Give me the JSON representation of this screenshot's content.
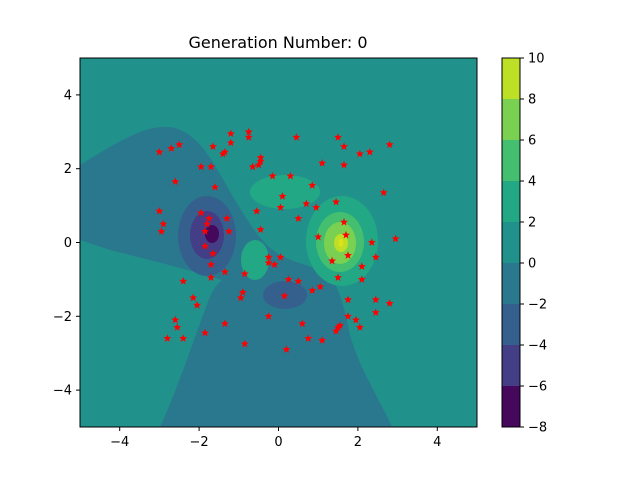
{
  "chart_data": {
    "type": "contour-scatter",
    "title": "Generation Number: 0",
    "xlim": [
      -5,
      5
    ],
    "ylim": [
      -5,
      5
    ],
    "x_ticks": [
      -4,
      -2,
      0,
      2,
      4
    ],
    "y_ticks": [
      -4,
      -2,
      0,
      2,
      4
    ],
    "x_tick_labels": [
      "−4",
      "−2",
      "0",
      "2",
      "4"
    ],
    "y_tick_labels": [
      "−4",
      "−2",
      "0",
      "2",
      "4"
    ],
    "colorbar": {
      "levels": [
        -8,
        -6,
        -4,
        -2,
        0,
        2,
        4,
        6,
        8,
        10
      ],
      "tick_labels": [
        "−8",
        "−6",
        "−4",
        "−2",
        "0",
        "2",
        "4",
        "6",
        "8",
        "10"
      ],
      "colors": [
        "#46085c",
        "#433e85",
        "#35608d",
        "#2a788e",
        "#21918c",
        "#22a884",
        "#44bf70",
        "#7ad151",
        "#bddf26",
        "#dde318"
      ]
    },
    "points": {
      "marker": "star",
      "color": "#ff0000",
      "data": [
        [
          -3.0,
          2.45
        ],
        [
          -2.7,
          2.55
        ],
        [
          -2.5,
          2.65
        ],
        [
          -1.65,
          2.6
        ],
        [
          -1.35,
          2.45
        ],
        [
          -1.2,
          2.95
        ],
        [
          -1.2,
          2.7
        ],
        [
          -0.75,
          3.0
        ],
        [
          -0.75,
          2.85
        ],
        [
          0.45,
          2.85
        ],
        [
          1.5,
          2.85
        ],
        [
          1.65,
          2.6
        ],
        [
          2.05,
          2.4
        ],
        [
          2.3,
          2.45
        ],
        [
          2.8,
          2.65
        ],
        [
          -1.95,
          2.05
        ],
        [
          -1.7,
          2.05
        ],
        [
          -1.4,
          2.4
        ],
        [
          -0.45,
          2.3
        ],
        [
          -0.45,
          2.2
        ],
        [
          -0.65,
          2.05
        ],
        [
          -0.15,
          1.8
        ],
        [
          0.3,
          1.8
        ],
        [
          1.1,
          2.15
        ],
        [
          1.65,
          2.1
        ],
        [
          -2.6,
          1.65
        ],
        [
          -1.6,
          1.5
        ],
        [
          -0.5,
          2.1
        ],
        [
          0.85,
          1.55
        ],
        [
          2.65,
          1.35
        ],
        [
          -3.0,
          0.85
        ],
        [
          -2.9,
          0.5
        ],
        [
          -2.95,
          0.3
        ],
        [
          -1.95,
          0.8
        ],
        [
          -1.75,
          0.65
        ],
        [
          -1.8,
          0.5
        ],
        [
          -1.85,
          0.3
        ],
        [
          -1.85,
          -0.1
        ],
        [
          -1.65,
          -0.3
        ],
        [
          -1.7,
          -0.6
        ],
        [
          -1.7,
          -0.95
        ],
        [
          -1.3,
          0.65
        ],
        [
          -1.25,
          0.3
        ],
        [
          -0.55,
          0.85
        ],
        [
          -0.45,
          0.35
        ],
        [
          0.05,
          0.95
        ],
        [
          0.1,
          1.25
        ],
        [
          0.5,
          0.65
        ],
        [
          0.7,
          1.05
        ],
        [
          0.95,
          0.95
        ],
        [
          1.0,
          0.15
        ],
        [
          1.45,
          1.1
        ],
        [
          1.65,
          0.55
        ],
        [
          1.7,
          0.2
        ],
        [
          1.75,
          -0.35
        ],
        [
          2.35,
          0.0
        ],
        [
          2.45,
          -0.4
        ],
        [
          2.95,
          0.1
        ],
        [
          1.35,
          -0.5
        ],
        [
          2.1,
          -0.65
        ],
        [
          -1.35,
          -0.8
        ],
        [
          -0.85,
          -0.85
        ],
        [
          -0.25,
          -0.4
        ],
        [
          -0.25,
          -0.55
        ],
        [
          -0.1,
          -0.6
        ],
        [
          0.05,
          -0.4
        ],
        [
          0.25,
          -1.0
        ],
        [
          0.5,
          -1.05
        ],
        [
          0.85,
          -1.3
        ],
        [
          1.05,
          -1.2
        ],
        [
          1.5,
          -0.95
        ],
        [
          2.1,
          -1.0
        ],
        [
          -2.4,
          -1.05
        ],
        [
          -2.15,
          -1.5
        ],
        [
          -2.05,
          -1.7
        ],
        [
          -0.95,
          -1.5
        ],
        [
          -0.9,
          -1.35
        ],
        [
          0.15,
          -1.45
        ],
        [
          1.75,
          -1.55
        ],
        [
          2.45,
          -1.55
        ],
        [
          2.8,
          -1.65
        ],
        [
          -2.6,
          -2.1
        ],
        [
          -2.55,
          -2.3
        ],
        [
          -1.85,
          -2.45
        ],
        [
          -1.35,
          -2.2
        ],
        [
          -0.25,
          -2.0
        ],
        [
          0.6,
          -2.2
        ],
        [
          1.45,
          -2.4
        ],
        [
          1.5,
          -2.3
        ],
        [
          1.75,
          -2.0
        ],
        [
          1.95,
          -2.1
        ],
        [
          2.05,
          -2.3
        ],
        [
          2.45,
          -1.9
        ],
        [
          -2.8,
          -2.6
        ],
        [
          -2.4,
          -2.6
        ],
        [
          -0.85,
          -2.75
        ],
        [
          0.75,
          -2.6
        ],
        [
          1.1,
          -2.65
        ],
        [
          0.2,
          -2.9
        ],
        [
          1.55,
          -2.25
        ]
      ]
    }
  }
}
